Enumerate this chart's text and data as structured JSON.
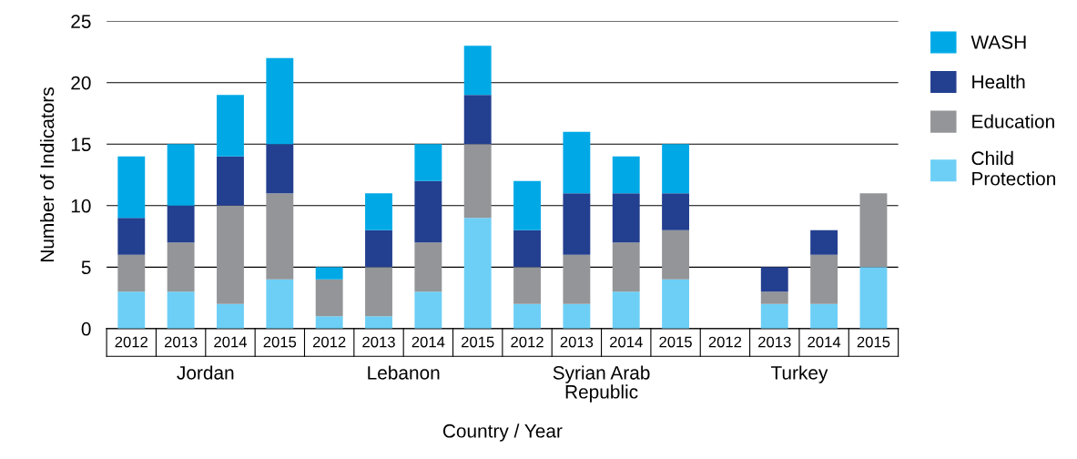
{
  "chart_data": {
    "type": "bar",
    "stacked": true,
    "xlabel": "Country / Year",
    "ylabel": "Number of Indicators",
    "categories": [
      "2012",
      "2013",
      "2014",
      "2015",
      "2012",
      "2013",
      "2014",
      "2015",
      "2012",
      "2013",
      "2014",
      "2015",
      "2012",
      "2013",
      "2014",
      "2015"
    ],
    "annotations": [
      "Jordan",
      "Lebanon",
      "Syrian Arab\nRepublic",
      "Turkey"
    ],
    "series": [
      {
        "name": "Child\nProtection",
        "color": "#6dcff6",
        "values": [
          3,
          3,
          2,
          4,
          1,
          1,
          3,
          9,
          2,
          2,
          3,
          4,
          0,
          2,
          2,
          5
        ]
      },
      {
        "name": "Education",
        "color": "#939598",
        "values": [
          3,
          4,
          8,
          7,
          3,
          4,
          4,
          6,
          3,
          4,
          4,
          4,
          0,
          1,
          4,
          6
        ]
      },
      {
        "name": "Health",
        "color": "#233f8f",
        "values": [
          3,
          3,
          4,
          4,
          0,
          3,
          5,
          4,
          3,
          5,
          4,
          3,
          0,
          2,
          2,
          0
        ]
      },
      {
        "name": "WASH",
        "color": "#00a9e6",
        "values": [
          5,
          5,
          5,
          7,
          1,
          3,
          3,
          4,
          4,
          5,
          3,
          4,
          0,
          0,
          0,
          0
        ]
      }
    ],
    "ylim": [
      0,
      25
    ],
    "yticks": [
      0,
      5,
      10,
      15,
      20,
      25
    ],
    "grid": "y",
    "legend": "top right"
  }
}
